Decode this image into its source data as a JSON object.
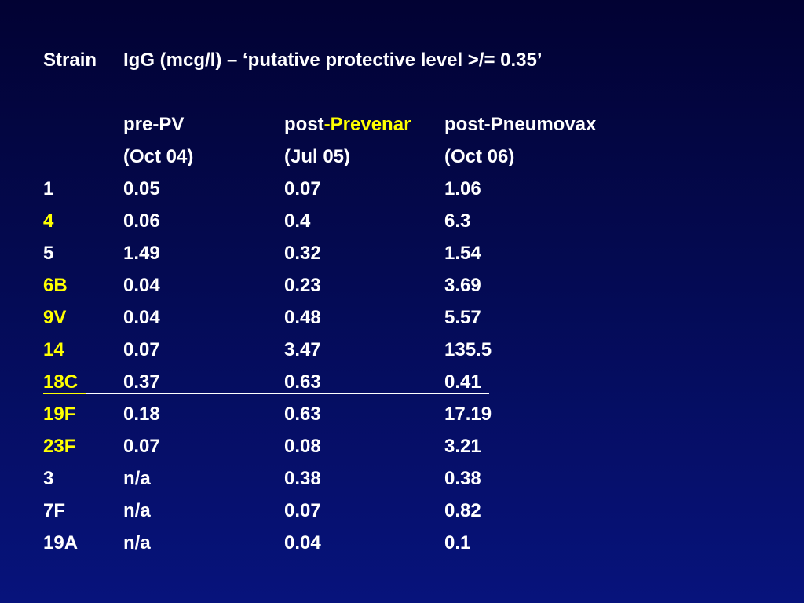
{
  "header": {
    "strain_label": "Strain",
    "igg_label": "IgG (mcg/l) – ‘putative protective level >/= 0.35’"
  },
  "columns": [
    {
      "line1_prefix": "pre-PV",
      "line1_highlight": "",
      "line2": "(Oct 04)"
    },
    {
      "line1_prefix": "post",
      "line1_highlight": "-Prevenar",
      "line2": "(Jul 05)"
    },
    {
      "line1_prefix": "post-Pneumovax",
      "line1_highlight": "",
      "line2": "(Oct 06)"
    }
  ],
  "rows": [
    {
      "strain": "1",
      "highlight": false,
      "pre": "0.05",
      "post_prevenar": "0.07",
      "post_pneumovax": "1.06"
    },
    {
      "strain": "4",
      "highlight": true,
      "pre": "0.06",
      "post_prevenar": "0.4",
      "post_pneumovax": "6.3"
    },
    {
      "strain": "5",
      "highlight": false,
      "pre": "1.49",
      "post_prevenar": "0.32",
      "post_pneumovax": "1.54"
    },
    {
      "strain": "6B",
      "highlight": true,
      "pre": "0.04",
      "post_prevenar": "0.23",
      "post_pneumovax": "3.69"
    },
    {
      "strain": "9V",
      "highlight": true,
      "pre": "0.04",
      "post_prevenar": "0.48",
      "post_pneumovax": "5.57"
    },
    {
      "strain": "14",
      "highlight": true,
      "pre": "0.07",
      "post_prevenar": "3.47",
      "post_pneumovax": "135.5"
    },
    {
      "strain": "18C",
      "highlight": true,
      "pre": "0.37",
      "post_prevenar": "0.63",
      "post_pneumovax": "0.41"
    },
    {
      "strain": "19F",
      "highlight": true,
      "pre": "0.18",
      "post_prevenar": "0.63",
      "post_pneumovax": "17.19"
    },
    {
      "strain": "23F",
      "highlight": true,
      "pre": "0.07",
      "post_prevenar": "0.08",
      "post_pneumovax": "3.21"
    },
    {
      "strain": "3",
      "highlight": false,
      "pre": "n/a",
      "post_prevenar": "0.38",
      "post_pneumovax": "0.38"
    },
    {
      "strain": "7F",
      "highlight": false,
      "pre": "n/a",
      "post_prevenar": "0.07",
      "post_pneumovax": "0.82"
    },
    {
      "strain": "19A",
      "highlight": false,
      "pre": "n/a",
      "post_prevenar": "0.04",
      "post_pneumovax": "0.1"
    }
  ],
  "colors": {
    "background_top": "#020233",
    "background_bottom": "#07137c",
    "text": "#ffffff",
    "highlight": "#ffff00"
  }
}
